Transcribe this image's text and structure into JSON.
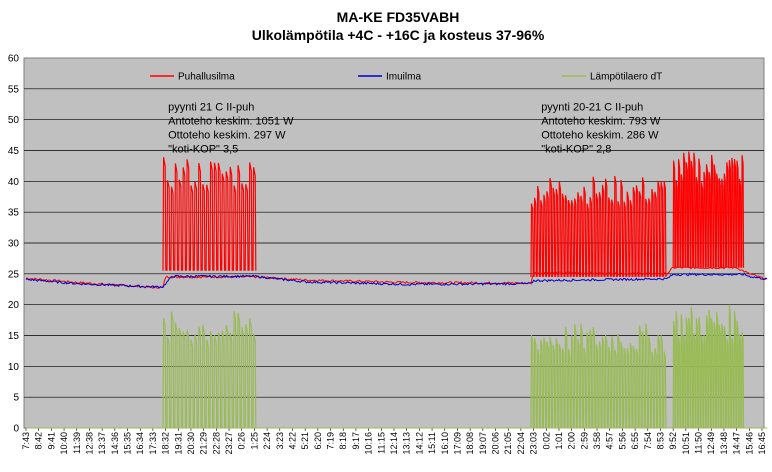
{
  "chart_data": {
    "type": "line",
    "title": "MA-KE FD35VABH",
    "subtitle": "Ulkolämpötila +4C - +16C ja kosteus 37-96%",
    "ylim": [
      0,
      60
    ],
    "y_ticks": [
      0,
      5,
      10,
      15,
      20,
      25,
      30,
      35,
      40,
      45,
      50,
      55,
      60
    ],
    "grid": true,
    "legend": {
      "placement": "top"
    },
    "x_ticks": [
      "7:43",
      "8:42",
      "9:41",
      "10:40",
      "11:39",
      "12:38",
      "13:37",
      "14:36",
      "15:35",
      "16:34",
      "17:33",
      "18:32",
      "19:31",
      "20:30",
      "21:29",
      "22:28",
      "23:27",
      "0:26",
      "1:25",
      "2:24",
      "3:23",
      "4:22",
      "5:21",
      "6:20",
      "7:19",
      "8:18",
      "9:17",
      "10:16",
      "11:15",
      "12:14",
      "13:13",
      "14:12",
      "15:11",
      "16:10",
      "17:09",
      "18:08",
      "19:07",
      "20:06",
      "21:05",
      "22:04",
      "23:03",
      "0:02",
      "1:01",
      "2:00",
      "2:59",
      "3:58",
      "4:57",
      "5:56",
      "6:55",
      "7:54",
      "8:53",
      "9:52",
      "10:51",
      "11:50",
      "12:49",
      "13:48",
      "14:47",
      "15:46",
      "16:45"
    ],
    "series": [
      {
        "name": "Puhallusilma",
        "color": "#ff0000",
        "baseline": [
          [
            0,
            24.3
          ],
          [
            4,
            23.6
          ],
          [
            10,
            22.8
          ],
          [
            10.8,
            22.8
          ],
          [
            11,
            24.5
          ],
          [
            18,
            24.5
          ],
          [
            22,
            24.0
          ],
          [
            30,
            23.6
          ],
          [
            39.8,
            23.5
          ],
          [
            40,
            25.2
          ],
          [
            50.5,
            25.0
          ],
          [
            51,
            26
          ],
          [
            56,
            26
          ],
          [
            57,
            25
          ],
          [
            58.5,
            24.0
          ]
        ],
        "bursts": [
          {
            "x0": 10.8,
            "x1": 18.2,
            "low": 25.5,
            "high": 44,
            "pulses": 24
          },
          {
            "x0": 39.8,
            "x1": 50.5,
            "low": 24.5,
            "high": 41,
            "pulses": 44
          },
          {
            "x0": 51,
            "x1": 56.6,
            "low": 26,
            "high": 45,
            "pulses": 28
          }
        ]
      },
      {
        "name": "Imuilma",
        "color": "#0000cc",
        "baseline": [
          [
            0,
            24.1
          ],
          [
            4,
            23.4
          ],
          [
            10,
            22.9
          ],
          [
            10.8,
            22.9
          ],
          [
            11.5,
            24.6
          ],
          [
            18,
            24.6
          ],
          [
            22,
            23.7
          ],
          [
            30,
            23.3
          ],
          [
            39.8,
            23.4
          ],
          [
            40,
            23.9
          ],
          [
            50.5,
            24.2
          ],
          [
            51,
            24.9
          ],
          [
            56.6,
            24.9
          ],
          [
            57,
            24.6
          ],
          [
            58.5,
            24.1
          ]
        ],
        "bursts": []
      },
      {
        "name": "Lämpötilaero dT",
        "color": "#99bb55",
        "baseline": [
          [
            0,
            0
          ],
          [
            58.5,
            0
          ]
        ],
        "bursts": [
          {
            "x0": 10.8,
            "x1": 18.2,
            "low": 0,
            "high": 19,
            "pulses": 24
          },
          {
            "x0": 39.8,
            "x1": 50.5,
            "low": 0,
            "high": 17,
            "pulses": 44
          },
          {
            "x0": 51,
            "x1": 56.6,
            "low": 0,
            "high": 20,
            "pulses": 28
          }
        ]
      }
    ],
    "annotations": [
      {
        "x": 11.2,
        "y": 51.5,
        "lines": [
          "pyynti 21 C II-puh",
          "Antoteho keskim. 1051 W",
          "Ottoteho keskim. 297 W",
          "\"koti-KOP\" 3,5"
        ]
      },
      {
        "x": 40.6,
        "y": 51.5,
        "lines": [
          "pyynti 20-21 C II-puh",
          "Antoteho keskim. 793 W",
          "Ottoteho keskim. 286 W",
          "\"koti-KOP\" 2,8"
        ]
      }
    ]
  }
}
